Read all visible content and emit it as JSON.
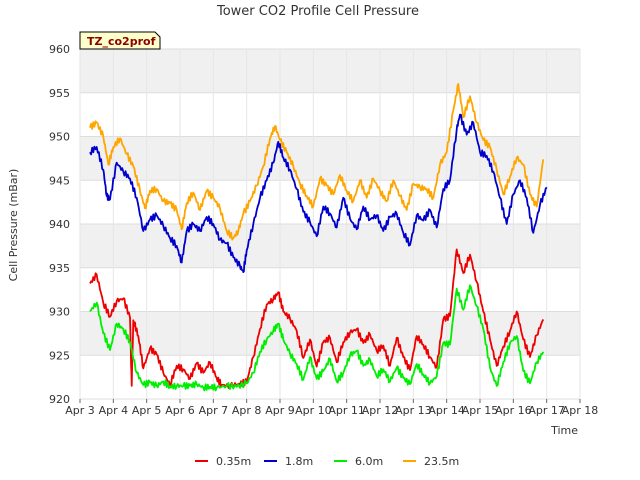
{
  "chart_data": {
    "type": "line",
    "title": "Tower CO2 Profile Cell Pressure",
    "xlabel": "Time",
    "ylabel": "Cell Pressure (mBar)",
    "site_label": "TZ_co2prof",
    "xlim": [
      3,
      18
    ],
    "ylim": [
      920,
      960
    ],
    "x_ticks": [
      3,
      4,
      5,
      6,
      7,
      8,
      9,
      10,
      11,
      12,
      13,
      14,
      15,
      16,
      17,
      18
    ],
    "x_tick_labels": [
      "Apr 3",
      "Apr 4",
      "Apr 5",
      "Apr 6",
      "Apr 7",
      "Apr 8",
      "Apr 9",
      "Apr 10",
      "Apr 11",
      "Apr 12",
      "Apr 13",
      "Apr 14",
      "Apr 15",
      "Apr 16",
      "Apr 17",
      "Apr 18"
    ],
    "y_ticks": [
      920,
      925,
      930,
      935,
      940,
      945,
      950,
      955,
      960
    ],
    "y_tick_labels": [
      "920",
      "925",
      "930",
      "935",
      "940",
      "945",
      "950",
      "955",
      "960"
    ],
    "grid": true,
    "legend_position": "bottom",
    "series": [
      {
        "name": "0.35m",
        "color": "#ee0000",
        "points": [
          [
            3.3,
            933.2
          ],
          [
            3.5,
            934.2
          ],
          [
            3.7,
            931.0
          ],
          [
            3.9,
            929.4
          ],
          [
            4.1,
            931.2
          ],
          [
            4.3,
            931.5
          ],
          [
            4.5,
            929.3
          ],
          [
            4.55,
            921.5
          ],
          [
            4.6,
            929.0
          ],
          [
            4.75,
            927.2
          ],
          [
            4.9,
            923.5
          ],
          [
            5.1,
            925.8
          ],
          [
            5.3,
            925.1
          ],
          [
            5.5,
            923.0
          ],
          [
            5.7,
            921.6
          ],
          [
            5.9,
            923.8
          ],
          [
            6.1,
            923.4
          ],
          [
            6.3,
            922.3
          ],
          [
            6.5,
            924.1
          ],
          [
            6.7,
            923.0
          ],
          [
            6.9,
            924.2
          ],
          [
            7.1,
            922.4
          ],
          [
            7.25,
            921.6
          ],
          [
            7.5,
            921.5
          ],
          [
            7.8,
            921.7
          ],
          [
            8.0,
            922.0
          ],
          [
            8.2,
            924.8
          ],
          [
            8.4,
            928.0
          ],
          [
            8.6,
            930.8
          ],
          [
            8.8,
            931.4
          ],
          [
            8.95,
            932.2
          ],
          [
            9.1,
            930.0
          ],
          [
            9.3,
            929.2
          ],
          [
            9.5,
            927.8
          ],
          [
            9.7,
            924.7
          ],
          [
            9.9,
            926.8
          ],
          [
            10.1,
            923.7
          ],
          [
            10.3,
            926.5
          ],
          [
            10.5,
            927.0
          ],
          [
            10.7,
            924.2
          ],
          [
            10.9,
            926.5
          ],
          [
            11.1,
            927.6
          ],
          [
            11.3,
            928.0
          ],
          [
            11.5,
            926.4
          ],
          [
            11.7,
            927.4
          ],
          [
            11.9,
            925.5
          ],
          [
            12.1,
            926.1
          ],
          [
            12.3,
            923.8
          ],
          [
            12.5,
            927.0
          ],
          [
            12.7,
            924.8
          ],
          [
            12.9,
            923.3
          ],
          [
            13.1,
            927.2
          ],
          [
            13.3,
            926.2
          ],
          [
            13.5,
            924.8
          ],
          [
            13.7,
            923.6
          ],
          [
            13.9,
            929.1
          ],
          [
            14.1,
            929.5
          ],
          [
            14.3,
            937.1
          ],
          [
            14.5,
            934.4
          ],
          [
            14.7,
            936.5
          ],
          [
            14.9,
            933.4
          ],
          [
            15.1,
            930.0
          ],
          [
            15.3,
            926.8
          ],
          [
            15.5,
            923.8
          ],
          [
            15.7,
            926.0
          ],
          [
            15.9,
            927.8
          ],
          [
            16.1,
            930.0
          ],
          [
            16.3,
            926.8
          ],
          [
            16.5,
            924.8
          ],
          [
            16.7,
            927.3
          ],
          [
            16.9,
            929.1
          ]
        ]
      },
      {
        "name": "1.8m",
        "color": "#0000cc",
        "points": [
          [
            3.3,
            948.2
          ],
          [
            3.5,
            948.8
          ],
          [
            3.7,
            946.2
          ],
          [
            3.8,
            943.2
          ],
          [
            3.9,
            942.8
          ],
          [
            4.1,
            947.0
          ],
          [
            4.3,
            946.0
          ],
          [
            4.5,
            945.2
          ],
          [
            4.7,
            943.0
          ],
          [
            4.9,
            939.2
          ],
          [
            5.1,
            940.5
          ],
          [
            5.3,
            941.0
          ],
          [
            5.5,
            939.8
          ],
          [
            5.7,
            938.4
          ],
          [
            5.9,
            937.5
          ],
          [
            6.05,
            935.6
          ],
          [
            6.2,
            939.2
          ],
          [
            6.4,
            940.0
          ],
          [
            6.6,
            939.2
          ],
          [
            6.8,
            940.8
          ],
          [
            7.0,
            940.0
          ],
          [
            7.2,
            938.2
          ],
          [
            7.4,
            937.8
          ],
          [
            7.6,
            936.2
          ],
          [
            7.8,
            935.2
          ],
          [
            7.9,
            934.5
          ],
          [
            8.0,
            937.0
          ],
          [
            8.2,
            940.0
          ],
          [
            8.4,
            943.0
          ],
          [
            8.6,
            945.0
          ],
          [
            8.8,
            947.0
          ],
          [
            8.95,
            949.4
          ],
          [
            9.1,
            947.6
          ],
          [
            9.3,
            946.2
          ],
          [
            9.5,
            944.0
          ],
          [
            9.7,
            941.4
          ],
          [
            9.9,
            940.2
          ],
          [
            10.1,
            938.6
          ],
          [
            10.3,
            942.0
          ],
          [
            10.5,
            941.2
          ],
          [
            10.7,
            939.6
          ],
          [
            10.9,
            943.0
          ],
          [
            11.1,
            940.6
          ],
          [
            11.3,
            939.4
          ],
          [
            11.5,
            942.0
          ],
          [
            11.7,
            940.5
          ],
          [
            11.9,
            941.0
          ],
          [
            12.1,
            939.2
          ],
          [
            12.3,
            940.8
          ],
          [
            12.5,
            941.2
          ],
          [
            12.7,
            939.0
          ],
          [
            12.9,
            937.6
          ],
          [
            13.1,
            941.0
          ],
          [
            13.3,
            940.4
          ],
          [
            13.5,
            941.6
          ],
          [
            13.7,
            939.6
          ],
          [
            13.9,
            944.0
          ],
          [
            14.1,
            945.0
          ],
          [
            14.3,
            950.8
          ],
          [
            14.4,
            952.5
          ],
          [
            14.6,
            950.2
          ],
          [
            14.8,
            951.6
          ],
          [
            15.0,
            948.2
          ],
          [
            15.2,
            947.8
          ],
          [
            15.4,
            946.0
          ],
          [
            15.6,
            943.0
          ],
          [
            15.8,
            940.0
          ],
          [
            16.0,
            943.4
          ],
          [
            16.2,
            945.0
          ],
          [
            16.4,
            943.0
          ],
          [
            16.6,
            939.0
          ],
          [
            16.8,
            942.2
          ],
          [
            17.0,
            944.2
          ]
        ]
      },
      {
        "name": "6.0m",
        "color": "#00ee00",
        "points": [
          [
            3.3,
            930.0
          ],
          [
            3.5,
            931.0
          ],
          [
            3.7,
            927.5
          ],
          [
            3.9,
            925.6
          ],
          [
            4.1,
            928.6
          ],
          [
            4.3,
            928.0
          ],
          [
            4.5,
            926.5
          ],
          [
            4.7,
            923.0
          ],
          [
            4.9,
            921.6
          ],
          [
            5.1,
            921.9
          ],
          [
            5.3,
            921.5
          ],
          [
            5.5,
            922.0
          ],
          [
            5.7,
            921.4
          ],
          [
            5.9,
            921.5
          ],
          [
            6.1,
            921.5
          ],
          [
            6.3,
            921.5
          ],
          [
            6.5,
            921.7
          ],
          [
            6.7,
            921.3
          ],
          [
            6.9,
            921.4
          ],
          [
            7.1,
            921.3
          ],
          [
            7.4,
            921.5
          ],
          [
            7.7,
            921.4
          ],
          [
            8.0,
            921.8
          ],
          [
            8.2,
            923.0
          ],
          [
            8.4,
            925.4
          ],
          [
            8.6,
            926.8
          ],
          [
            8.8,
            927.8
          ],
          [
            8.95,
            928.6
          ],
          [
            9.1,
            926.8
          ],
          [
            9.3,
            925.2
          ],
          [
            9.5,
            924.0
          ],
          [
            9.7,
            922.2
          ],
          [
            9.9,
            924.8
          ],
          [
            10.1,
            922.3
          ],
          [
            10.3,
            923.2
          ],
          [
            10.5,
            924.6
          ],
          [
            10.7,
            922.0
          ],
          [
            10.9,
            923.0
          ],
          [
            11.1,
            925.0
          ],
          [
            11.3,
            925.5
          ],
          [
            11.5,
            923.8
          ],
          [
            11.7,
            924.5
          ],
          [
            11.9,
            922.6
          ],
          [
            12.1,
            923.4
          ],
          [
            12.3,
            922.0
          ],
          [
            12.5,
            923.6
          ],
          [
            12.7,
            922.4
          ],
          [
            12.9,
            921.7
          ],
          [
            13.1,
            924.0
          ],
          [
            13.3,
            922.8
          ],
          [
            13.5,
            921.8
          ],
          [
            13.7,
            922.6
          ],
          [
            13.9,
            926.4
          ],
          [
            14.1,
            926.2
          ],
          [
            14.3,
            932.6
          ],
          [
            14.5,
            930.2
          ],
          [
            14.7,
            933.0
          ],
          [
            14.9,
            930.6
          ],
          [
            15.1,
            928.0
          ],
          [
            15.3,
            923.6
          ],
          [
            15.5,
            921.5
          ],
          [
            15.7,
            924.2
          ],
          [
            15.9,
            926.4
          ],
          [
            16.1,
            927.2
          ],
          [
            16.3,
            923.2
          ],
          [
            16.5,
            921.8
          ],
          [
            16.7,
            924.2
          ],
          [
            16.9,
            925.4
          ]
        ]
      },
      {
        "name": "23.5m",
        "color": "#ffa500",
        "points": [
          [
            3.3,
            951.0
          ],
          [
            3.5,
            951.6
          ],
          [
            3.7,
            950.0
          ],
          [
            3.85,
            946.8
          ],
          [
            4.0,
            948.8
          ],
          [
            4.2,
            949.8
          ],
          [
            4.4,
            948.0
          ],
          [
            4.6,
            946.6
          ],
          [
            4.8,
            943.8
          ],
          [
            4.95,
            941.8
          ],
          [
            5.1,
            943.8
          ],
          [
            5.3,
            944.0
          ],
          [
            5.5,
            942.6
          ],
          [
            5.7,
            942.4
          ],
          [
            5.9,
            941.6
          ],
          [
            6.05,
            939.4
          ],
          [
            6.2,
            942.4
          ],
          [
            6.4,
            943.6
          ],
          [
            6.6,
            941.6
          ],
          [
            6.8,
            943.8
          ],
          [
            7.0,
            943.0
          ],
          [
            7.2,
            941.8
          ],
          [
            7.4,
            939.2
          ],
          [
            7.6,
            938.4
          ],
          [
            7.75,
            939.2
          ],
          [
            7.9,
            941.2
          ],
          [
            8.1,
            942.6
          ],
          [
            8.3,
            944.4
          ],
          [
            8.5,
            946.6
          ],
          [
            8.7,
            949.8
          ],
          [
            8.85,
            951.2
          ],
          [
            9.0,
            949.6
          ],
          [
            9.2,
            948.2
          ],
          [
            9.4,
            946.6
          ],
          [
            9.6,
            944.6
          ],
          [
            9.8,
            943.2
          ],
          [
            10.0,
            942.0
          ],
          [
            10.2,
            945.2
          ],
          [
            10.4,
            944.4
          ],
          [
            10.6,
            943.4
          ],
          [
            10.8,
            945.6
          ],
          [
            11.0,
            943.8
          ],
          [
            11.2,
            942.6
          ],
          [
            11.4,
            945.0
          ],
          [
            11.6,
            943.0
          ],
          [
            11.8,
            945.2
          ],
          [
            12.0,
            943.8
          ],
          [
            12.2,
            942.6
          ],
          [
            12.4,
            945.0
          ],
          [
            12.6,
            943.2
          ],
          [
            12.8,
            941.6
          ],
          [
            13.0,
            944.6
          ],
          [
            13.2,
            944.2
          ],
          [
            13.4,
            944.0
          ],
          [
            13.6,
            943.0
          ],
          [
            13.8,
            946.8
          ],
          [
            14.0,
            948.2
          ],
          [
            14.2,
            953.0
          ],
          [
            14.35,
            956.0
          ],
          [
            14.5,
            952.2
          ],
          [
            14.7,
            954.6
          ],
          [
            14.9,
            951.6
          ],
          [
            15.1,
            949.6
          ],
          [
            15.3,
            948.8
          ],
          [
            15.5,
            946.2
          ],
          [
            15.7,
            943.4
          ],
          [
            15.9,
            945.4
          ],
          [
            16.1,
            947.6
          ],
          [
            16.3,
            946.8
          ],
          [
            16.5,
            943.4
          ],
          [
            16.7,
            942.0
          ],
          [
            16.9,
            947.4
          ]
        ]
      }
    ]
  }
}
